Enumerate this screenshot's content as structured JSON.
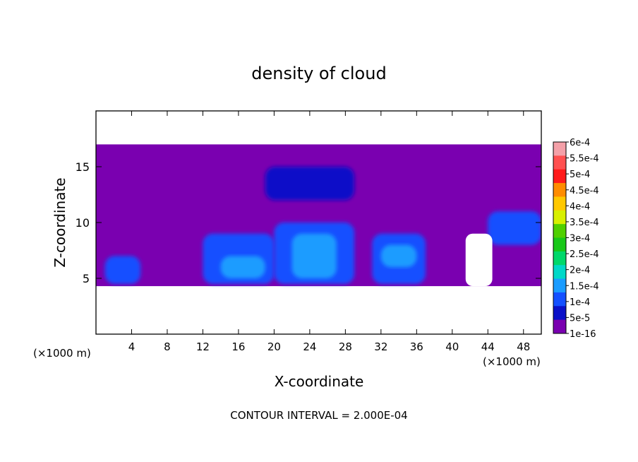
{
  "chart_data": {
    "type": "heatmap",
    "title": "density of cloud",
    "xlabel": "X-coordinate",
    "ylabel": "Z-coordinate",
    "x_unit_left": "(×1000 m)",
    "x_unit_right": "(×1000 m)",
    "footer": "CONTOUR INTERVAL = 2.000E-04",
    "xlim": [
      0,
      50
    ],
    "ylim": [
      0,
      20
    ],
    "xticks": [
      4,
      8,
      12,
      16,
      20,
      24,
      28,
      32,
      36,
      40,
      44,
      48
    ],
    "xtick_labels": [
      "4",
      "8",
      "12",
      "16",
      "20",
      "24",
      "28",
      "32",
      "36",
      "40",
      "44",
      "48"
    ],
    "yticks": [
      5,
      10,
      15
    ],
    "ytick_labels": [
      "5",
      "10",
      "15"
    ],
    "colorbar": {
      "labels": [
        "6e-4",
        "5.5e-4",
        "5e-4",
        "4.5e-4",
        "4e-4",
        "3.5e-4",
        "3e-4",
        "2.5e-4",
        "2e-4",
        "1.5e-4",
        "1e-4",
        "5e-5",
        "1e-16"
      ],
      "colors": [
        "#f4a0a8",
        "#ff5050",
        "#ff1a1a",
        "#ff8c00",
        "#ffc800",
        "#d8f000",
        "#50d000",
        "#18c818",
        "#00d86a",
        "#00d8c8",
        "#1a9cff",
        "#1450ff",
        "#0a10c8",
        "#7a00b0"
      ]
    },
    "cloud_layer": {
      "base_z": 4.3,
      "top_z": 17,
      "gaps_x": [
        [
          41.5,
          44.5
        ]
      ],
      "regions": [
        {
          "x": [
            0,
            50
          ],
          "z": [
            4.3,
            17
          ],
          "level": 0
        },
        {
          "x": [
            1,
            5
          ],
          "z": [
            4.5,
            7
          ],
          "level": 2
        },
        {
          "x": [
            12,
            20
          ],
          "z": [
            4.5,
            9
          ],
          "level": 2
        },
        {
          "x": [
            20,
            29
          ],
          "z": [
            4.5,
            10
          ],
          "level": 2
        },
        {
          "x": [
            31,
            37
          ],
          "z": [
            4.5,
            9
          ],
          "level": 2
        },
        {
          "x": [
            14,
            19
          ],
          "z": [
            5,
            7
          ],
          "level": 3
        },
        {
          "x": [
            22,
            27
          ],
          "z": [
            5,
            9
          ],
          "level": 3
        },
        {
          "x": [
            32,
            36
          ],
          "z": [
            6,
            8
          ],
          "level": 3
        },
        {
          "x": [
            44,
            50
          ],
          "z": [
            8,
            11
          ],
          "level": 2
        },
        {
          "x": [
            19,
            29
          ],
          "z": [
            12,
            15
          ],
          "level": 1
        }
      ]
    }
  }
}
